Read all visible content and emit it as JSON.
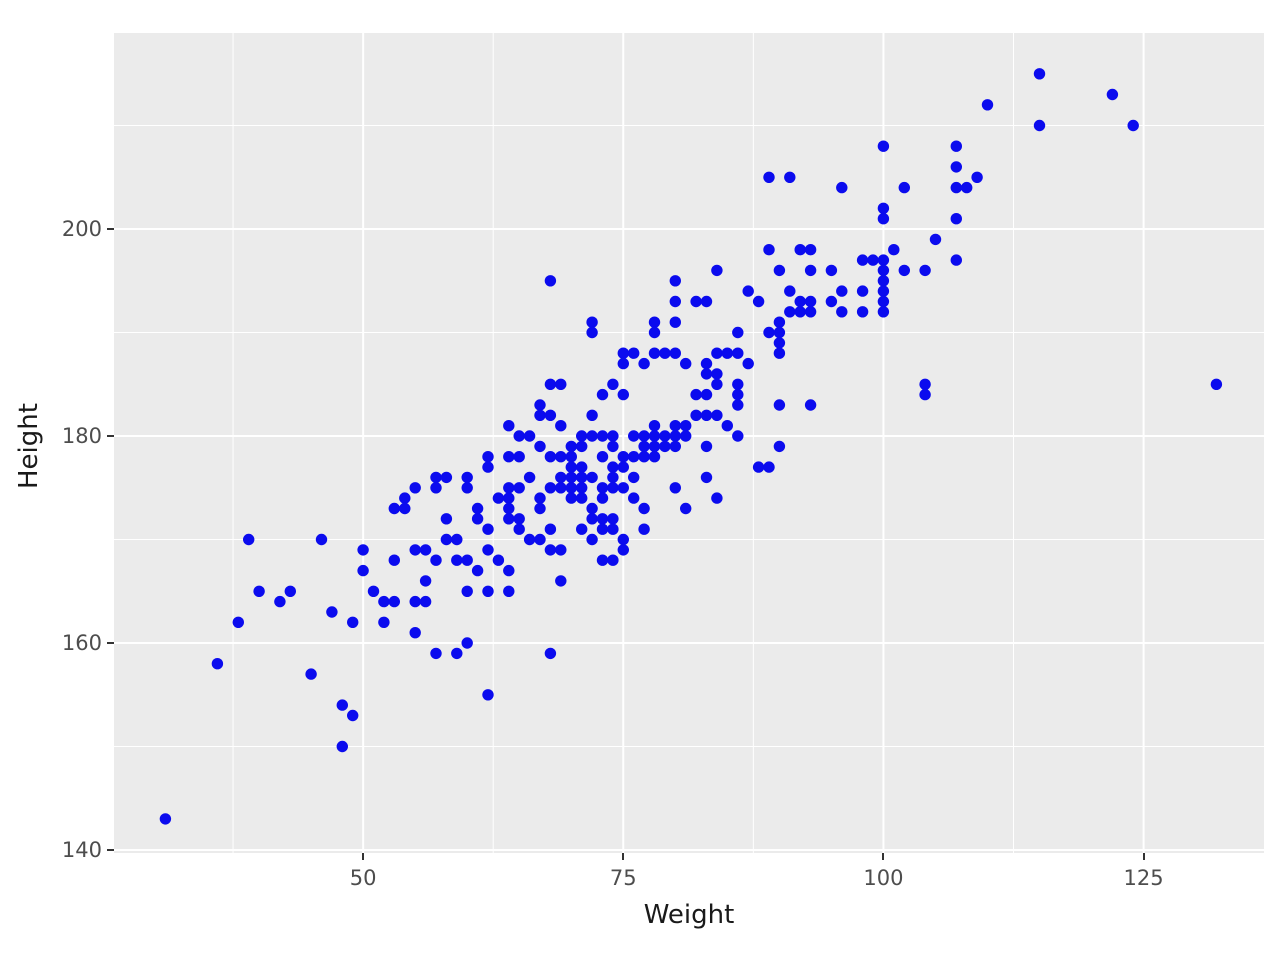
{
  "chart_data": {
    "type": "scatter",
    "title": "",
    "xlabel": "Weight",
    "ylabel": "Height",
    "x_tick_labels": [
      "50",
      "75",
      "100",
      "125"
    ],
    "x_ticks": [
      50,
      75,
      100,
      125
    ],
    "x_minor_ticks": [
      37.5,
      62.5,
      87.5,
      112.5
    ],
    "y_tick_labels": [
      "140",
      "160",
      "180",
      "200"
    ],
    "y_ticks": [
      140,
      160,
      180,
      200
    ],
    "y_minor_ticks": [
      150,
      170,
      190,
      210
    ],
    "xlim": [
      26.06,
      136.57
    ],
    "ylim": [
      139.71,
      218.94
    ],
    "grid": "major-white-2px, minor-white-1px, on gray panel",
    "legend": false,
    "panel_background": "#EBEBEB",
    "grid_color": "#FFFFFF",
    "point_color": "#0b0bee",
    "tick_label_color": "#4D4D4D",
    "axis_title_color": "#1A1A1A",
    "tick_mark_color": "#333333",
    "points": [
      [
        115,
        215
      ],
      [
        122,
        213
      ],
      [
        110,
        212
      ],
      [
        115,
        210
      ],
      [
        124,
        210
      ],
      [
        100,
        208
      ],
      [
        107,
        208
      ],
      [
        107,
        206
      ],
      [
        89,
        205
      ],
      [
        91,
        205
      ],
      [
        109,
        205
      ],
      [
        96,
        204
      ],
      [
        102,
        204
      ],
      [
        107,
        204
      ],
      [
        108,
        204
      ],
      [
        100,
        202
      ],
      [
        100,
        201
      ],
      [
        107,
        201
      ],
      [
        105,
        199
      ],
      [
        89,
        198
      ],
      [
        92,
        198
      ],
      [
        93,
        198
      ],
      [
        101,
        198
      ],
      [
        98,
        197
      ],
      [
        99,
        197
      ],
      [
        100,
        197
      ],
      [
        107,
        197
      ],
      [
        84,
        196
      ],
      [
        90,
        196
      ],
      [
        93,
        196
      ],
      [
        95,
        196
      ],
      [
        100,
        196
      ],
      [
        102,
        196
      ],
      [
        104,
        196
      ],
      [
        68,
        195
      ],
      [
        80,
        195
      ],
      [
        100,
        195
      ],
      [
        87,
        194
      ],
      [
        91,
        194
      ],
      [
        96,
        194
      ],
      [
        98,
        194
      ],
      [
        100,
        194
      ],
      [
        80,
        193
      ],
      [
        82,
        193
      ],
      [
        83,
        193
      ],
      [
        88,
        193
      ],
      [
        92,
        193
      ],
      [
        93,
        193
      ],
      [
        95,
        193
      ],
      [
        100,
        193
      ],
      [
        91,
        192
      ],
      [
        92,
        192
      ],
      [
        93,
        192
      ],
      [
        96,
        192
      ],
      [
        98,
        192
      ],
      [
        100,
        192
      ],
      [
        72,
        191
      ],
      [
        78,
        191
      ],
      [
        80,
        191
      ],
      [
        90,
        191
      ],
      [
        72,
        190
      ],
      [
        78,
        190
      ],
      [
        86,
        190
      ],
      [
        89,
        190
      ],
      [
        90,
        190
      ],
      [
        90,
        189
      ],
      [
        75,
        188
      ],
      [
        76,
        188
      ],
      [
        78,
        188
      ],
      [
        79,
        188
      ],
      [
        80,
        188
      ],
      [
        84,
        188
      ],
      [
        85,
        188
      ],
      [
        86,
        188
      ],
      [
        90,
        188
      ],
      [
        75,
        187
      ],
      [
        77,
        187
      ],
      [
        81,
        187
      ],
      [
        83,
        187
      ],
      [
        87,
        187
      ],
      [
        83,
        186
      ],
      [
        84,
        186
      ],
      [
        68,
        185
      ],
      [
        69,
        185
      ],
      [
        74,
        185
      ],
      [
        84,
        185
      ],
      [
        86,
        185
      ],
      [
        104,
        185
      ],
      [
        132,
        185
      ],
      [
        73,
        184
      ],
      [
        75,
        184
      ],
      [
        82,
        184
      ],
      [
        83,
        184
      ],
      [
        86,
        184
      ],
      [
        104,
        184
      ],
      [
        67,
        183
      ],
      [
        86,
        183
      ],
      [
        90,
        183
      ],
      [
        93,
        183
      ],
      [
        67,
        182
      ],
      [
        68,
        182
      ],
      [
        72,
        182
      ],
      [
        82,
        182
      ],
      [
        83,
        182
      ],
      [
        84,
        182
      ],
      [
        64,
        181
      ],
      [
        69,
        181
      ],
      [
        78,
        181
      ],
      [
        80,
        181
      ],
      [
        81,
        181
      ],
      [
        85,
        181
      ],
      [
        65,
        180
      ],
      [
        66,
        180
      ],
      [
        71,
        180
      ],
      [
        72,
        180
      ],
      [
        73,
        180
      ],
      [
        74,
        180
      ],
      [
        76,
        180
      ],
      [
        77,
        180
      ],
      [
        78,
        180
      ],
      [
        79,
        180
      ],
      [
        80,
        180
      ],
      [
        81,
        180
      ],
      [
        86,
        180
      ],
      [
        67,
        179
      ],
      [
        70,
        179
      ],
      [
        71,
        179
      ],
      [
        74,
        179
      ],
      [
        77,
        179
      ],
      [
        78,
        179
      ],
      [
        79,
        179
      ],
      [
        80,
        179
      ],
      [
        83,
        179
      ],
      [
        90,
        179
      ],
      [
        62,
        178
      ],
      [
        64,
        178
      ],
      [
        65,
        178
      ],
      [
        68,
        178
      ],
      [
        69,
        178
      ],
      [
        70,
        178
      ],
      [
        73,
        178
      ],
      [
        75,
        178
      ],
      [
        76,
        178
      ],
      [
        77,
        178
      ],
      [
        78,
        178
      ],
      [
        62,
        177
      ],
      [
        70,
        177
      ],
      [
        71,
        177
      ],
      [
        74,
        177
      ],
      [
        75,
        177
      ],
      [
        88,
        177
      ],
      [
        89,
        177
      ],
      [
        57,
        176
      ],
      [
        58,
        176
      ],
      [
        60,
        176
      ],
      [
        66,
        176
      ],
      [
        69,
        176
      ],
      [
        70,
        176
      ],
      [
        71,
        176
      ],
      [
        72,
        176
      ],
      [
        74,
        176
      ],
      [
        76,
        176
      ],
      [
        83,
        176
      ],
      [
        55,
        175
      ],
      [
        57,
        175
      ],
      [
        60,
        175
      ],
      [
        64,
        175
      ],
      [
        65,
        175
      ],
      [
        68,
        175
      ],
      [
        69,
        175
      ],
      [
        70,
        175
      ],
      [
        71,
        175
      ],
      [
        73,
        175
      ],
      [
        74,
        175
      ],
      [
        75,
        175
      ],
      [
        80,
        175
      ],
      [
        54,
        174
      ],
      [
        63,
        174
      ],
      [
        64,
        174
      ],
      [
        67,
        174
      ],
      [
        70,
        174
      ],
      [
        71,
        174
      ],
      [
        73,
        174
      ],
      [
        76,
        174
      ],
      [
        84,
        174
      ],
      [
        53,
        173
      ],
      [
        54,
        173
      ],
      [
        61,
        173
      ],
      [
        64,
        173
      ],
      [
        67,
        173
      ],
      [
        72,
        173
      ],
      [
        77,
        173
      ],
      [
        81,
        173
      ],
      [
        58,
        172
      ],
      [
        61,
        172
      ],
      [
        64,
        172
      ],
      [
        65,
        172
      ],
      [
        72,
        172
      ],
      [
        73,
        172
      ],
      [
        74,
        172
      ],
      [
        62,
        171
      ],
      [
        65,
        171
      ],
      [
        68,
        171
      ],
      [
        71,
        171
      ],
      [
        73,
        171
      ],
      [
        74,
        171
      ],
      [
        77,
        171
      ],
      [
        39,
        170
      ],
      [
        46,
        170
      ],
      [
        58,
        170
      ],
      [
        59,
        170
      ],
      [
        66,
        170
      ],
      [
        67,
        170
      ],
      [
        72,
        170
      ],
      [
        75,
        170
      ],
      [
        50,
        169
      ],
      [
        55,
        169
      ],
      [
        56,
        169
      ],
      [
        62,
        169
      ],
      [
        68,
        169
      ],
      [
        69,
        169
      ],
      [
        75,
        169
      ],
      [
        53,
        168
      ],
      [
        57,
        168
      ],
      [
        59,
        168
      ],
      [
        60,
        168
      ],
      [
        63,
        168
      ],
      [
        73,
        168
      ],
      [
        74,
        168
      ],
      [
        50,
        167
      ],
      [
        61,
        167
      ],
      [
        64,
        167
      ],
      [
        56,
        166
      ],
      [
        69,
        166
      ],
      [
        40,
        165
      ],
      [
        43,
        165
      ],
      [
        51,
        165
      ],
      [
        60,
        165
      ],
      [
        62,
        165
      ],
      [
        64,
        165
      ],
      [
        42,
        164
      ],
      [
        52,
        164
      ],
      [
        53,
        164
      ],
      [
        55,
        164
      ],
      [
        56,
        164
      ],
      [
        47,
        163
      ],
      [
        38,
        162
      ],
      [
        49,
        162
      ],
      [
        52,
        162
      ],
      [
        55,
        161
      ],
      [
        60,
        160
      ],
      [
        57,
        159
      ],
      [
        59,
        159
      ],
      [
        68,
        159
      ],
      [
        36,
        158
      ],
      [
        45,
        157
      ],
      [
        62,
        155
      ],
      [
        48,
        154
      ],
      [
        49,
        153
      ],
      [
        48,
        150
      ],
      [
        31,
        143
      ]
    ]
  }
}
